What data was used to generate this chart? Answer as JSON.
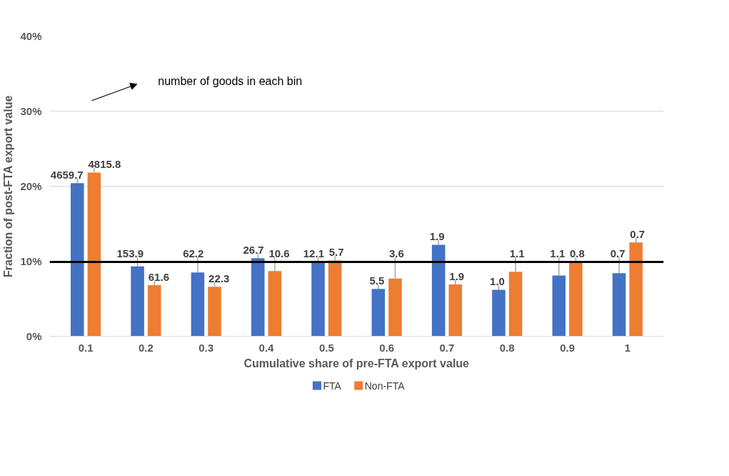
{
  "chart_data": {
    "type": "bar",
    "xlabel": "Cumulative share of pre-FTA export value",
    "ylabel": "Fraction of post-FTA export value",
    "categories": [
      "0.1",
      "0.2",
      "0.3",
      "0.4",
      "0.5",
      "0.6",
      "0.7",
      "0.8",
      "0.9",
      "1"
    ],
    "series": [
      {
        "name": "FTA",
        "color": "#4472c4",
        "values": [
          20.4,
          9.3,
          8.5,
          10.4,
          9.8,
          6.3,
          12.2,
          6.2,
          8.1,
          8.4
        ]
      },
      {
        "name": "Non-FTA",
        "color": "#ed7d31",
        "values": [
          21.8,
          6.8,
          6.6,
          8.7,
          10.1,
          7.7,
          6.9,
          8.6,
          9.9,
          12.5
        ]
      }
    ],
    "ylim": [
      0,
      40
    ],
    "yticks": [
      {
        "value": 0,
        "label": "0%"
      },
      {
        "value": 10,
        "label": "10%"
      },
      {
        "value": 20,
        "label": "20%"
      },
      {
        "value": 30,
        "label": "30%"
      },
      {
        "value": 40,
        "label": "40%"
      }
    ],
    "ref_lines": [
      {
        "axis": "y",
        "value": 9.9,
        "color": "#000000"
      }
    ],
    "annotations": [
      "number of goods in each bin",
      {
        "text": "4659.7",
        "x": "0.1",
        "y": 20.4
      },
      {
        "text": "4815.8",
        "x": "0.1",
        "y": 21.8
      },
      {
        "text": "153.9",
        "x": "0.2",
        "y": 9.3
      },
      {
        "text": "61.6",
        "x": "0.2",
        "y": 6.8
      },
      {
        "text": "62.2",
        "x": "0.3",
        "y": 8.5
      },
      {
        "text": "22.3",
        "x": "0.3",
        "y": 6.6
      },
      {
        "text": "26.7",
        "x": "0.4",
        "y": 10.4
      },
      {
        "text": "10.6",
        "x": "0.4",
        "y": 8.7
      },
      {
        "text": "12.1",
        "x": "0.5",
        "y": 9.8
      },
      {
        "text": "5.7",
        "x": "0.5",
        "y": 10.1
      },
      {
        "text": "5.5",
        "x": "0.6",
        "y": 6.3
      },
      {
        "text": "3.6",
        "x": "0.6",
        "y": 7.7
      },
      {
        "text": "1.9",
        "x": "0.7",
        "y": 12.2
      },
      {
        "text": "1.9",
        "x": "0.7",
        "y": 6.9
      },
      {
        "text": "1.0",
        "x": "0.8",
        "y": 6.2
      },
      {
        "text": "1.1",
        "x": "0.8",
        "y": 8.6
      },
      {
        "text": "1.1",
        "x": "0.9",
        "y": 8.1
      },
      {
        "text": "0.8",
        "x": "0.9",
        "y": 9.9
      },
      {
        "text": "0.7",
        "x": "1",
        "y": 8.4
      },
      {
        "text": "0.7",
        "x": "1",
        "y": 12.5
      }
    ],
    "grid": "y",
    "legend": "bottom"
  }
}
